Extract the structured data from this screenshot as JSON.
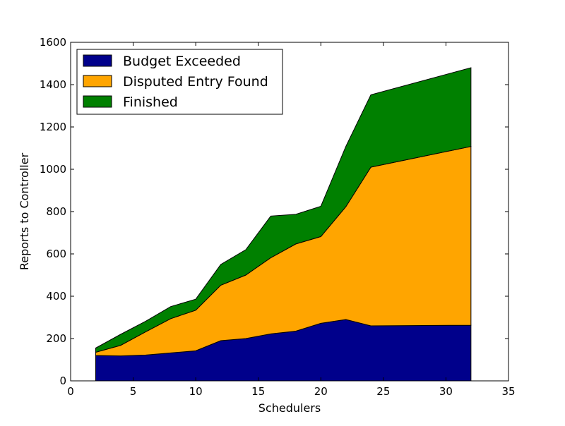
{
  "chart_data": {
    "type": "area",
    "stacked": true,
    "title": "",
    "xlabel": "Schedulers",
    "ylabel": "Reports to Controller",
    "xlim": [
      0,
      35
    ],
    "ylim": [
      0,
      1600
    ],
    "xticks": [
      0,
      5,
      10,
      15,
      20,
      25,
      30,
      35
    ],
    "yticks": [
      0,
      200,
      400,
      600,
      800,
      1000,
      1200,
      1400,
      1600
    ],
    "grid": false,
    "legend_position": "top-left",
    "x": [
      2,
      4,
      6,
      8,
      10,
      12,
      14,
      16,
      18,
      20,
      22,
      24,
      32
    ],
    "series": [
      {
        "name": "Budget Exceeded",
        "color": "#00008b",
        "values": [
          120,
          118,
          122,
          132,
          142,
          190,
          200,
          222,
          235,
          272,
          290,
          260,
          263
        ]
      },
      {
        "name": "Disputed Entry Found",
        "color": "#ffa500",
        "values": [
          15,
          50,
          110,
          162,
          192,
          262,
          300,
          360,
          412,
          410,
          533,
          750,
          845
        ]
      },
      {
        "name": "Finished",
        "color": "#008000",
        "values": [
          20,
          52,
          50,
          57,
          52,
          98,
          120,
          197,
          140,
          143,
          285,
          342,
          372
        ]
      }
    ]
  }
}
